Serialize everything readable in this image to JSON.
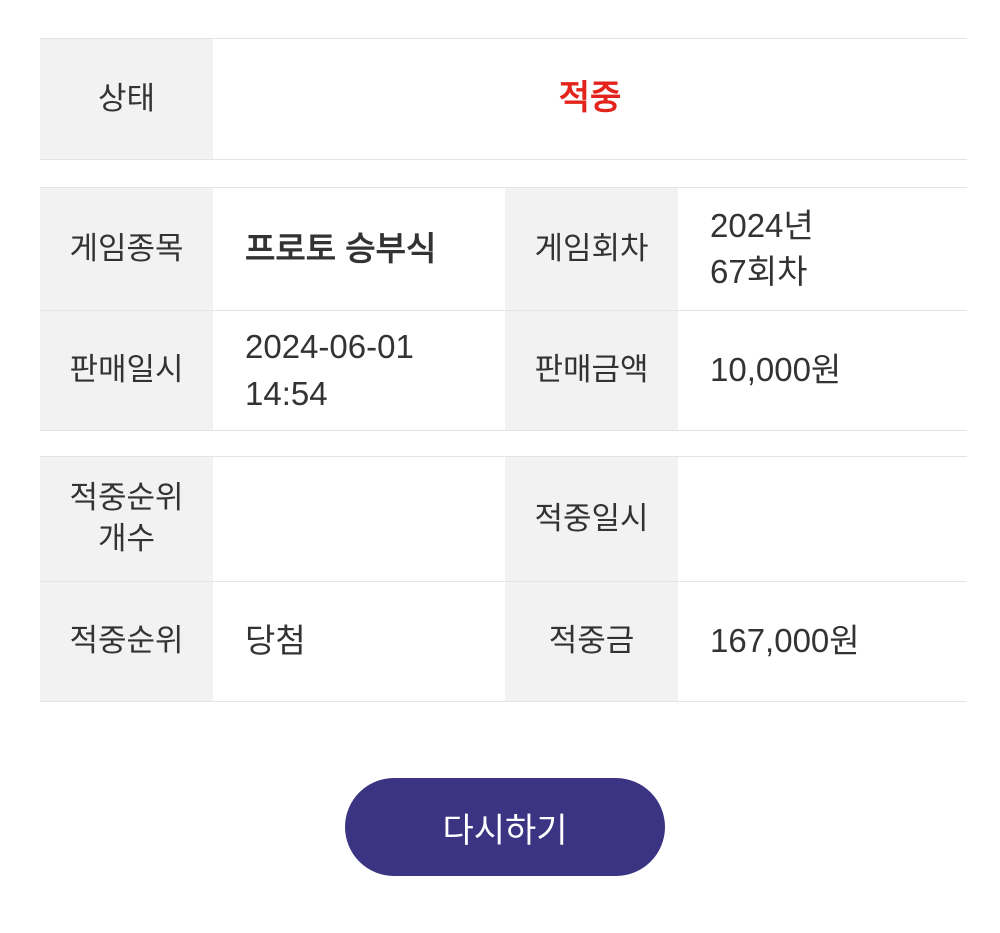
{
  "colors": {
    "status_red": "#e2241c",
    "button_bg": "#3a3483",
    "label_cell_bg": "#f2f2f2",
    "border": "#e4e4e4",
    "text": "#333333"
  },
  "status": {
    "label": "상태",
    "value": "적중"
  },
  "details": {
    "game_type": {
      "label": "게임종목",
      "value": "프로토 승부식"
    },
    "game_round": {
      "label": "게임회차",
      "value": "2024년 67회차"
    },
    "sale_datetime": {
      "label": "판매일시",
      "value": "2024-06-01 14:54"
    },
    "sale_amount": {
      "label": "판매금액",
      "value": "10,000원"
    }
  },
  "result": {
    "win_rank_count": {
      "label": "적중순위 개수",
      "value": ""
    },
    "win_datetime": {
      "label": "적중일시",
      "value": ""
    },
    "win_rank": {
      "label": "적중순위",
      "value": "당첨"
    },
    "win_amount": {
      "label": "적중금",
      "value": "167,000원"
    }
  },
  "retry_button": {
    "label": "다시하기"
  }
}
